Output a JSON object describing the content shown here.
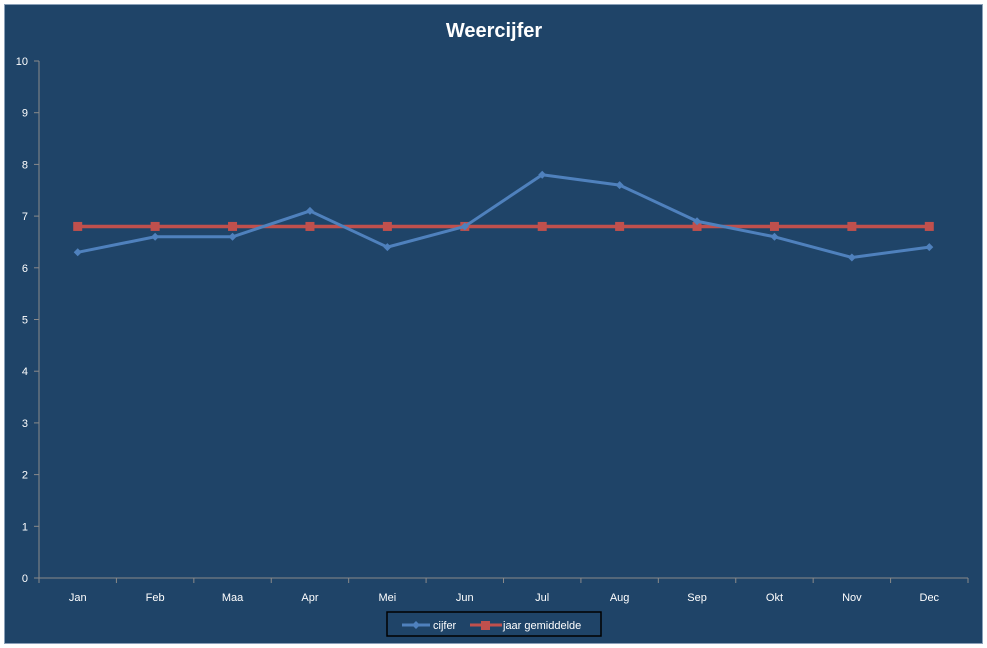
{
  "chart_data": {
    "type": "line",
    "title": "Weercijfer",
    "xlabel": "",
    "ylabel": "",
    "categories": [
      "Jan",
      "Feb",
      "Maa",
      "Apr",
      "Mei",
      "Jun",
      "Jul",
      "Aug",
      "Sep",
      "Okt",
      "Nov",
      "Dec"
    ],
    "ylim": [
      0,
      10
    ],
    "yticks": [
      0,
      1,
      2,
      3,
      4,
      5,
      6,
      7,
      8,
      9,
      10
    ],
    "grid": false,
    "legend_position": "bottom",
    "series": [
      {
        "name": "cijfer",
        "color": "#4f81bd",
        "marker": "diamond",
        "values": [
          6.3,
          6.6,
          6.6,
          7.1,
          6.4,
          6.8,
          7.8,
          7.6,
          6.9,
          6.6,
          6.2,
          6.4
        ]
      },
      {
        "name": "jaar gemiddelde",
        "color": "#c0504d",
        "marker": "square",
        "values": [
          6.8,
          6.8,
          6.8,
          6.8,
          6.8,
          6.8,
          6.8,
          6.8,
          6.8,
          6.8,
          6.8,
          6.8
        ]
      }
    ]
  }
}
